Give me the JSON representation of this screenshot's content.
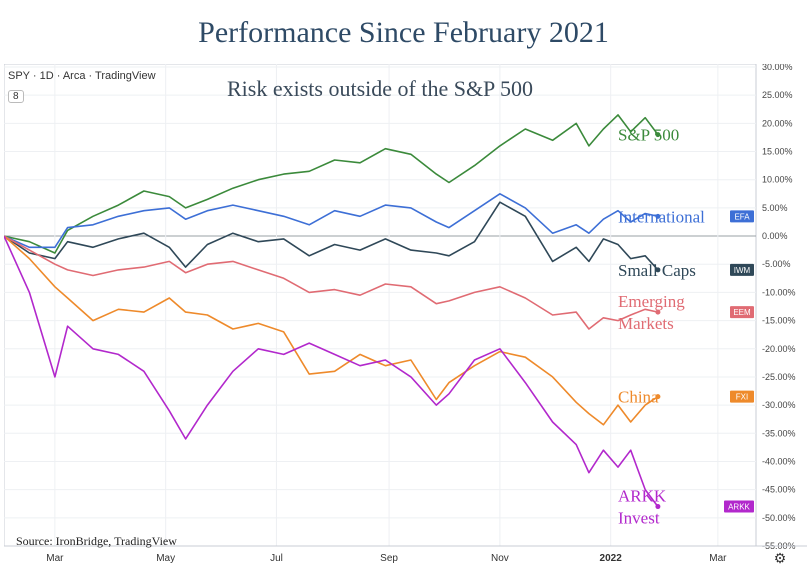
{
  "chart_data": {
    "type": "line",
    "title": "Performance Since February 2021",
    "subtitle": "Risk exists outside of the S&P 500",
    "header": "SPY · 1D · Arca · TradingView",
    "badge": "8",
    "source": "Source: IronBridge, TradingView",
    "x_ticks": [
      "Mar",
      "May",
      "Jul",
      "Sep",
      "Nov",
      "2022",
      "Mar"
    ],
    "x_tick_dates": [
      "2021-03-01",
      "2021-05-01",
      "2021-07-01",
      "2021-09-01",
      "2021-11-01",
      "2022-01-01",
      "2022-03-01"
    ],
    "x_range": [
      "2021-02-01",
      "2022-03-22"
    ],
    "y_ticks": [
      "30.00%",
      "25.00%",
      "20.00%",
      "15.00%",
      "10.00%",
      "5.00%",
      "0.00%",
      "-5.00%",
      "-10.00%",
      "-15.00%",
      "-20.00%",
      "-25.00%",
      "-30.00%",
      "-35.00%",
      "-40.00%",
      "-45.00%",
      "-50.00%",
      "-55.00%"
    ],
    "ylim": [
      -55,
      30
    ],
    "grid": true,
    "series": [
      {
        "name": "S&P 500",
        "label_lines": [
          "S&P 500"
        ],
        "color": "#3b8a3b",
        "x": [
          "2021-02-01",
          "2021-02-15",
          "2021-03-01",
          "2021-03-08",
          "2021-03-22",
          "2021-04-05",
          "2021-04-19",
          "2021-05-03",
          "2021-05-12",
          "2021-05-24",
          "2021-06-07",
          "2021-06-21",
          "2021-07-05",
          "2021-07-19",
          "2021-08-02",
          "2021-08-16",
          "2021-08-30",
          "2021-09-13",
          "2021-09-27",
          "2021-10-04",
          "2021-10-18",
          "2021-11-01",
          "2021-11-15",
          "2021-11-30",
          "2021-12-13",
          "2021-12-20",
          "2021-12-28",
          "2022-01-05",
          "2022-01-12",
          "2022-01-20",
          "2022-01-27"
        ],
        "y": [
          0.0,
          -1.0,
          -3.0,
          1.0,
          3.5,
          5.5,
          8.0,
          7.0,
          5.0,
          6.5,
          8.5,
          10.0,
          11.0,
          11.5,
          13.5,
          13.0,
          15.5,
          14.5,
          11.0,
          9.5,
          12.5,
          16.0,
          19.0,
          17.0,
          20.0,
          16.0,
          19.0,
          21.5,
          18.5,
          21.0,
          18.0
        ]
      },
      {
        "name": "International",
        "label_lines": [
          "International"
        ],
        "color": "#3d6fd6",
        "tag": "EFA",
        "x": [
          "2021-02-01",
          "2021-02-15",
          "2021-03-01",
          "2021-03-08",
          "2021-03-22",
          "2021-04-05",
          "2021-04-19",
          "2021-05-03",
          "2021-05-12",
          "2021-05-24",
          "2021-06-07",
          "2021-06-21",
          "2021-07-05",
          "2021-07-19",
          "2021-08-02",
          "2021-08-16",
          "2021-08-30",
          "2021-09-13",
          "2021-09-27",
          "2021-10-04",
          "2021-10-18",
          "2021-11-01",
          "2021-11-15",
          "2021-11-30",
          "2021-12-13",
          "2021-12-20",
          "2021-12-28",
          "2022-01-05",
          "2022-01-12",
          "2022-01-20",
          "2022-01-27"
        ],
        "y": [
          0.0,
          -2.0,
          -2.0,
          1.5,
          2.0,
          3.5,
          4.5,
          5.0,
          3.0,
          4.5,
          5.5,
          4.5,
          3.5,
          2.0,
          4.5,
          3.5,
          5.5,
          5.0,
          2.5,
          1.5,
          4.5,
          7.5,
          5.0,
          0.5,
          2.0,
          0.5,
          3.0,
          4.5,
          2.5,
          4.0,
          3.5
        ]
      },
      {
        "name": "Small Caps",
        "label_lines": [
          "Small Caps"
        ],
        "color": "#2f4858",
        "tag": "IWM",
        "x": [
          "2021-02-01",
          "2021-02-15",
          "2021-03-01",
          "2021-03-08",
          "2021-03-22",
          "2021-04-05",
          "2021-04-19",
          "2021-05-03",
          "2021-05-12",
          "2021-05-24",
          "2021-06-07",
          "2021-06-21",
          "2021-07-05",
          "2021-07-19",
          "2021-08-02",
          "2021-08-16",
          "2021-08-30",
          "2021-09-13",
          "2021-09-27",
          "2021-10-04",
          "2021-10-18",
          "2021-11-01",
          "2021-11-15",
          "2021-11-30",
          "2021-12-13",
          "2021-12-20",
          "2021-12-28",
          "2022-01-05",
          "2022-01-12",
          "2022-01-20",
          "2022-01-27"
        ],
        "y": [
          0.0,
          -3.0,
          -4.0,
          -1.0,
          -2.0,
          -0.5,
          0.5,
          -2.0,
          -5.5,
          -1.5,
          0.5,
          -1.0,
          -0.5,
          -3.5,
          -1.5,
          -2.5,
          -0.5,
          -2.5,
          -3.0,
          -3.5,
          -1.0,
          6.0,
          3.5,
          -4.5,
          -2.0,
          -4.5,
          -0.5,
          -1.5,
          -4.0,
          -3.5,
          -6.0
        ]
      },
      {
        "name": "Emerging Markets",
        "label_lines": [
          "Emerging",
          "Markets"
        ],
        "color": "#e06b73",
        "tag": "EEM",
        "x": [
          "2021-02-01",
          "2021-02-15",
          "2021-03-01",
          "2021-03-08",
          "2021-03-22",
          "2021-04-05",
          "2021-04-19",
          "2021-05-03",
          "2021-05-12",
          "2021-05-24",
          "2021-06-07",
          "2021-06-21",
          "2021-07-05",
          "2021-07-19",
          "2021-08-02",
          "2021-08-16",
          "2021-08-30",
          "2021-09-13",
          "2021-09-27",
          "2021-10-04",
          "2021-10-18",
          "2021-11-01",
          "2021-11-15",
          "2021-11-30",
          "2021-12-13",
          "2021-12-20",
          "2021-12-28",
          "2022-01-05",
          "2022-01-12",
          "2022-01-20",
          "2022-01-27"
        ],
        "y": [
          0.0,
          -2.5,
          -5.0,
          -6.0,
          -7.0,
          -6.0,
          -5.5,
          -4.5,
          -6.5,
          -5.0,
          -4.5,
          -6.0,
          -7.5,
          -10.0,
          -9.5,
          -10.5,
          -8.5,
          -9.0,
          -12.0,
          -11.5,
          -10.0,
          -9.0,
          -11.0,
          -14.0,
          -13.5,
          -16.5,
          -14.5,
          -15.0,
          -14.0,
          -13.0,
          -13.5
        ]
      },
      {
        "name": "China",
        "label_lines": [
          "China"
        ],
        "color": "#ee8a2b",
        "tag": "FXI",
        "x": [
          "2021-02-01",
          "2021-02-15",
          "2021-03-01",
          "2021-03-08",
          "2021-03-22",
          "2021-04-05",
          "2021-04-19",
          "2021-05-03",
          "2021-05-12",
          "2021-05-24",
          "2021-06-07",
          "2021-06-21",
          "2021-07-05",
          "2021-07-19",
          "2021-08-02",
          "2021-08-16",
          "2021-08-30",
          "2021-09-13",
          "2021-09-27",
          "2021-10-04",
          "2021-10-18",
          "2021-11-01",
          "2021-11-15",
          "2021-11-30",
          "2021-12-13",
          "2021-12-20",
          "2021-12-28",
          "2022-01-05",
          "2022-01-12",
          "2022-01-20",
          "2022-01-27"
        ],
        "y": [
          0.0,
          -4.0,
          -9.0,
          -11.0,
          -15.0,
          -13.0,
          -13.5,
          -11.0,
          -13.5,
          -14.0,
          -16.5,
          -15.5,
          -17.0,
          -24.5,
          -24.0,
          -21.0,
          -23.0,
          -22.0,
          -29.0,
          -26.0,
          -23.0,
          -20.5,
          -21.5,
          -25.0,
          -29.5,
          -31.5,
          -33.5,
          -30.0,
          -33.0,
          -30.0,
          -28.5
        ]
      },
      {
        "name": "ARKK Invest",
        "label_lines": [
          "ARKK",
          "Invest"
        ],
        "color": "#b228cc",
        "tag": "ARKK",
        "x": [
          "2021-02-01",
          "2021-02-15",
          "2021-03-01",
          "2021-03-08",
          "2021-03-22",
          "2021-04-05",
          "2021-04-19",
          "2021-05-03",
          "2021-05-12",
          "2021-05-24",
          "2021-06-07",
          "2021-06-21",
          "2021-07-05",
          "2021-07-19",
          "2021-08-02",
          "2021-08-16",
          "2021-08-30",
          "2021-09-13",
          "2021-09-27",
          "2021-10-04",
          "2021-10-18",
          "2021-11-01",
          "2021-11-15",
          "2021-11-30",
          "2021-12-13",
          "2021-12-20",
          "2021-12-28",
          "2022-01-05",
          "2022-01-12",
          "2022-01-20",
          "2022-01-27"
        ],
        "y": [
          0.0,
          -10.0,
          -25.0,
          -16.0,
          -20.0,
          -21.0,
          -24.0,
          -31.0,
          -36.0,
          -30.0,
          -24.0,
          -20.0,
          -21.0,
          -19.0,
          -21.0,
          -23.0,
          -22.0,
          -25.0,
          -30.0,
          -28.0,
          -22.0,
          -20.0,
          -26.0,
          -33.0,
          -37.0,
          -42.0,
          -38.0,
          -41.0,
          -38.0,
          -45.0,
          -48.0
        ]
      }
    ]
  }
}
